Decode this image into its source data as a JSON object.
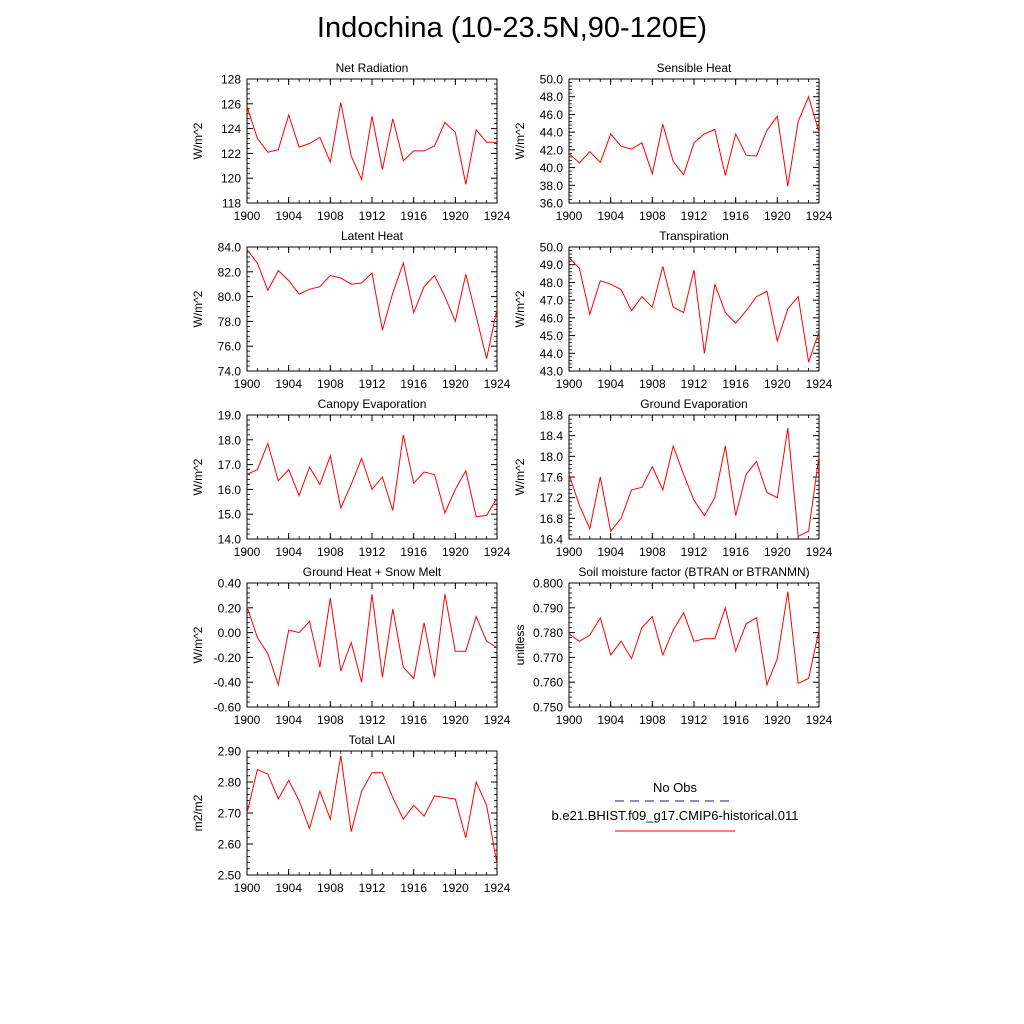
{
  "page_title": "Indochina (10-23.5N,90-120E)",
  "legend": {
    "obs_label": "No Obs",
    "obs_color": "#1a1a8c",
    "model_label": "b.e21.BHIST.f09_g17.CMIP6-historical.011",
    "model_color": "#ff0000"
  },
  "colors": {
    "line": "#ff0000",
    "axis": "#000000"
  },
  "chart_data": [
    {
      "type": "line",
      "title": "Net Radiation",
      "ylabel": "W/m^2",
      "ylim": [
        118,
        128
      ],
      "yticks": [
        "118",
        "120",
        "122",
        "124",
        "126",
        "128"
      ],
      "xlim": [
        1900,
        1924
      ],
      "xticks": [
        "1900",
        "1904",
        "1908",
        "1912",
        "1916",
        "1920",
        "1924"
      ],
      "x": [
        1900,
        1901,
        1902,
        1903,
        1904,
        1905,
        1906,
        1907,
        1908,
        1909,
        1910,
        1911,
        1912,
        1913,
        1914,
        1915,
        1916,
        1917,
        1918,
        1919,
        1920,
        1921,
        1922,
        1923,
        1924
      ],
      "series": [
        {
          "values": [
            125.8,
            123.2,
            122.1,
            122.3,
            125.1,
            122.5,
            122.8,
            123.3,
            121.3,
            126.1,
            121.8,
            119.9,
            125.0,
            120.7,
            124.8,
            121.4,
            122.2,
            122.2,
            122.6,
            124.5,
            123.7,
            119.5,
            123.9,
            122.9,
            122.9
          ]
        }
      ]
    },
    {
      "type": "line",
      "title": "Sensible Heat",
      "ylabel": "W/m^2",
      "ylim": [
        36,
        50
      ],
      "yticks": [
        "36.0",
        "38.0",
        "40.0",
        "42.0",
        "44.0",
        "46.0",
        "48.0",
        "50.0"
      ],
      "xlim": [
        1900,
        1924
      ],
      "xticks": [
        "1900",
        "1904",
        "1908",
        "1912",
        "1916",
        "1920",
        "1924"
      ],
      "x": [
        1900,
        1901,
        1902,
        1903,
        1904,
        1905,
        1906,
        1907,
        1908,
        1909,
        1910,
        1911,
        1912,
        1913,
        1914,
        1915,
        1916,
        1917,
        1918,
        1919,
        1920,
        1921,
        1922,
        1923,
        1924
      ],
      "series": [
        {
          "values": [
            41.6,
            40.5,
            41.8,
            40.6,
            43.8,
            42.4,
            42.1,
            42.8,
            39.3,
            44.9,
            40.7,
            39.2,
            42.8,
            43.8,
            44.3,
            39.1,
            43.8,
            41.4,
            41.3,
            44.2,
            45.8,
            37.9,
            45.2,
            48.0,
            44.0
          ]
        }
      ]
    },
    {
      "type": "line",
      "title": "Latent Heat",
      "ylabel": "W/m^2",
      "ylim": [
        74,
        84
      ],
      "yticks": [
        "74.0",
        "76.0",
        "78.0",
        "80.0",
        "82.0",
        "84.0"
      ],
      "xlim": [
        1900,
        1924
      ],
      "xticks": [
        "1900",
        "1904",
        "1908",
        "1912",
        "1916",
        "1920",
        "1924"
      ],
      "x": [
        1900,
        1901,
        1902,
        1903,
        1904,
        1905,
        1906,
        1907,
        1908,
        1909,
        1910,
        1911,
        1912,
        1913,
        1914,
        1915,
        1916,
        1917,
        1918,
        1919,
        1920,
        1921,
        1922,
        1923,
        1924
      ],
      "series": [
        {
          "values": [
            83.8,
            82.7,
            80.5,
            82.1,
            81.3,
            80.2,
            80.6,
            80.8,
            81.7,
            81.5,
            81.0,
            81.1,
            81.9,
            77.3,
            80.3,
            82.7,
            78.7,
            80.8,
            81.7,
            80.0,
            78.0,
            81.8,
            78.4,
            75.0,
            79.0
          ]
        }
      ]
    },
    {
      "type": "line",
      "title": "Transpiration",
      "ylabel": "W/m^2",
      "ylim": [
        43,
        50
      ],
      "yticks": [
        "43.0",
        "44.0",
        "45.0",
        "46.0",
        "47.0",
        "48.0",
        "49.0",
        "50.0"
      ],
      "xlim": [
        1900,
        1924
      ],
      "xticks": [
        "1900",
        "1904",
        "1908",
        "1912",
        "1916",
        "1920",
        "1924"
      ],
      "x": [
        1900,
        1901,
        1902,
        1903,
        1904,
        1905,
        1906,
        1907,
        1908,
        1909,
        1910,
        1911,
        1912,
        1913,
        1914,
        1915,
        1916,
        1917,
        1918,
        1919,
        1920,
        1921,
        1922,
        1923,
        1924
      ],
      "series": [
        {
          "values": [
            49.4,
            48.8,
            46.2,
            48.1,
            47.9,
            47.6,
            46.4,
            47.2,
            46.6,
            48.9,
            46.6,
            46.3,
            48.7,
            44.0,
            47.9,
            46.3,
            45.7,
            46.4,
            47.2,
            47.5,
            44.7,
            46.5,
            47.2,
            43.5,
            45.2
          ]
        }
      ]
    },
    {
      "type": "line",
      "title": "Canopy Evaporation",
      "ylabel": "W/m^2",
      "ylim": [
        14,
        19
      ],
      "yticks": [
        "14.0",
        "15.0",
        "16.0",
        "17.0",
        "18.0",
        "19.0"
      ],
      "xlim": [
        1900,
        1924
      ],
      "xticks": [
        "1900",
        "1904",
        "1908",
        "1912",
        "1916",
        "1920",
        "1924"
      ],
      "x": [
        1900,
        1901,
        1902,
        1903,
        1904,
        1905,
        1906,
        1907,
        1908,
        1909,
        1910,
        1911,
        1912,
        1913,
        1914,
        1915,
        1916,
        1917,
        1918,
        1919,
        1920,
        1921,
        1922,
        1923,
        1924
      ],
      "series": [
        {
          "values": [
            16.6,
            16.8,
            17.85,
            16.35,
            16.8,
            15.75,
            16.9,
            16.2,
            17.35,
            15.25,
            16.2,
            17.25,
            16.0,
            16.5,
            15.15,
            18.2,
            16.25,
            16.7,
            16.6,
            15.05,
            16.0,
            16.75,
            14.9,
            14.95,
            15.65
          ]
        }
      ]
    },
    {
      "type": "line",
      "title": "Ground Evaporation",
      "ylabel": "W/m^2",
      "ylim": [
        16.4,
        18.8
      ],
      "yticks": [
        "16.4",
        "16.8",
        "17.2",
        "17.6",
        "18.0",
        "18.4",
        "18.8"
      ],
      "xlim": [
        1900,
        1924
      ],
      "xticks": [
        "1900",
        "1904",
        "1908",
        "1912",
        "1916",
        "1920",
        "1924"
      ],
      "x": [
        1900,
        1901,
        1902,
        1903,
        1904,
        1905,
        1906,
        1907,
        1908,
        1909,
        1910,
        1911,
        1912,
        1913,
        1914,
        1915,
        1916,
        1917,
        1918,
        1919,
        1920,
        1921,
        1922,
        1923,
        1924
      ],
      "series": [
        {
          "values": [
            17.65,
            17.05,
            16.6,
            17.6,
            16.55,
            16.8,
            17.35,
            17.4,
            17.8,
            17.35,
            18.2,
            17.65,
            17.15,
            16.85,
            17.2,
            18.2,
            16.85,
            17.65,
            17.9,
            17.3,
            17.2,
            18.55,
            16.45,
            16.55,
            18.0
          ]
        }
      ]
    },
    {
      "type": "line",
      "title": "Ground Heat + Snow Melt",
      "ylabel": "W/m^2",
      "ylim": [
        -0.6,
        0.4
      ],
      "yticks": [
        "-0.60",
        "-0.40",
        "-0.20",
        "0.00",
        "0.20",
        "0.40"
      ],
      "xlim": [
        1900,
        1924
      ],
      "xticks": [
        "1900",
        "1904",
        "1908",
        "1912",
        "1916",
        "1920",
        "1924"
      ],
      "x": [
        1900,
        1901,
        1902,
        1903,
        1904,
        1905,
        1906,
        1907,
        1908,
        1909,
        1910,
        1911,
        1912,
        1913,
        1914,
        1915,
        1916,
        1917,
        1918,
        1919,
        1920,
        1921,
        1922,
        1923,
        1924
      ],
      "series": [
        {
          "values": [
            0.21,
            -0.04,
            -0.17,
            -0.42,
            0.02,
            0.0,
            0.09,
            -0.28,
            0.28,
            -0.31,
            -0.08,
            -0.4,
            0.31,
            -0.36,
            0.19,
            -0.28,
            -0.37,
            0.08,
            -0.36,
            0.31,
            -0.15,
            -0.15,
            0.13,
            -0.07,
            -0.12
          ]
        }
      ]
    },
    {
      "type": "line",
      "title": "Soil moisture factor (BTRAN or BTRANMN)",
      "ylabel": "unitless",
      "ylim": [
        0.75,
        0.8
      ],
      "yticks": [
        "0.750",
        "0.760",
        "0.770",
        "0.780",
        "0.790",
        "0.800"
      ],
      "xlim": [
        1900,
        1924
      ],
      "xticks": [
        "1900",
        "1904",
        "1908",
        "1912",
        "1916",
        "1920",
        "1924"
      ],
      "x": [
        1900,
        1901,
        1902,
        1903,
        1904,
        1905,
        1906,
        1907,
        1908,
        1909,
        1910,
        1911,
        1912,
        1913,
        1914,
        1915,
        1916,
        1917,
        1918,
        1919,
        1920,
        1921,
        1922,
        1923,
        1924
      ],
      "series": [
        {
          "values": [
            0.7795,
            0.7765,
            0.779,
            0.786,
            0.771,
            0.7765,
            0.7695,
            0.782,
            0.7865,
            0.771,
            0.781,
            0.788,
            0.7765,
            0.7775,
            0.7775,
            0.79,
            0.7725,
            0.7835,
            0.786,
            0.759,
            0.7695,
            0.7965,
            0.7595,
            0.7615,
            0.781
          ]
        }
      ]
    },
    {
      "type": "line",
      "title": "Total LAI",
      "ylabel": "m2/m2",
      "ylim": [
        2.5,
        2.9
      ],
      "yticks": [
        "2.50",
        "2.60",
        "2.70",
        "2.80",
        "2.90"
      ],
      "xlim": [
        1900,
        1924
      ],
      "xticks": [
        "1900",
        "1904",
        "1908",
        "1912",
        "1916",
        "1920",
        "1924"
      ],
      "x": [
        1900,
        1901,
        1902,
        1903,
        1904,
        1905,
        1906,
        1907,
        1908,
        1909,
        1910,
        1911,
        1912,
        1913,
        1914,
        1915,
        1916,
        1917,
        1918,
        1919,
        1920,
        1921,
        1922,
        1923,
        1924
      ],
      "series": [
        {
          "values": [
            2.7,
            2.84,
            2.825,
            2.745,
            2.805,
            2.74,
            2.65,
            2.77,
            2.68,
            2.885,
            2.64,
            2.77,
            2.83,
            2.83,
            2.75,
            2.68,
            2.725,
            2.69,
            2.755,
            2.75,
            2.745,
            2.62,
            2.8,
            2.725,
            2.535
          ]
        }
      ]
    }
  ]
}
